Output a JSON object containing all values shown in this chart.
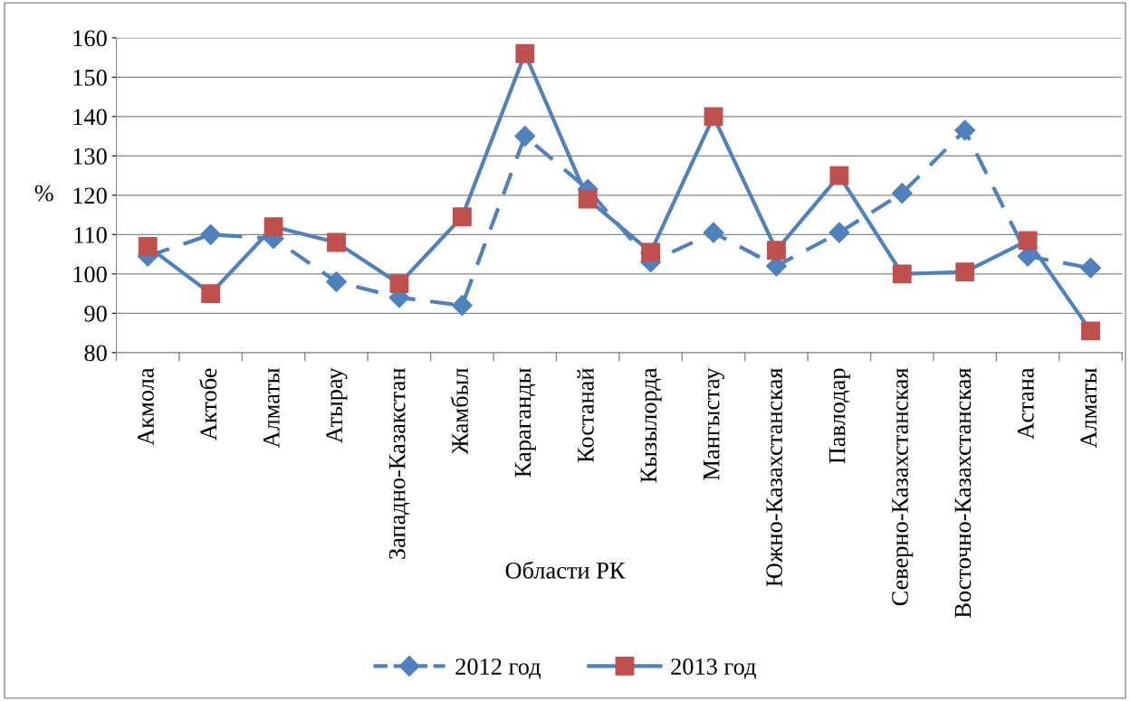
{
  "chart_data": {
    "type": "line",
    "categories": [
      "Акмола",
      "Актобе",
      "Алматы",
      "Атырау",
      "Западно-Казакстан",
      "Жамбыл",
      "Караганды",
      "Костанай",
      "Кызылорда",
      "Мангыстау",
      "Южно-Казахстанская",
      "Павлодар",
      "Северно-Казахстанская",
      "Восточно-Казахстанская",
      "Астана",
      "Алматы"
    ],
    "series": [
      {
        "name": "2012 год",
        "color": "#4f81bd",
        "marker": "diamond",
        "colors": [
          "#4f81bd",
          "#4f81bd",
          "#4f81bd",
          "#4f81bd",
          "#4f81bd",
          "#4f81bd",
          "#4f81bd",
          "#4f81bd",
          "#4f81bd",
          "#4f81bd",
          "#4f81bd",
          "#4f81bd",
          "#4f81bd",
          "#4f81bd",
          "#4f81bd",
          "#4f81bd"
        ],
        "line_style": "dashed",
        "values": [
          104.5,
          110,
          109,
          98,
          94,
          92,
          135,
          121.5,
          103,
          110.5,
          102,
          110.5,
          120.5,
          136.5,
          104.5,
          101.5
        ]
      },
      {
        "name": "2013 год",
        "color": "#4f81bd",
        "marker": "square",
        "colors": [
          "#c0504d",
          "#c0504d",
          "#c0504d",
          "#c0504d",
          "#c0504d",
          "#c0504d",
          "#c0504d",
          "#c0504d",
          "#c0504d",
          "#c0504d",
          "#c0504d",
          "#c0504d",
          "#c0504d",
          "#c0504d",
          "#c0504d",
          "#c0504d"
        ],
        "line_style": "solid",
        "values": [
          107,
          95,
          112,
          108,
          97.5,
          114.5,
          156,
          119,
          105.5,
          140,
          106,
          125,
          100,
          100.5,
          108.5,
          85.5
        ]
      }
    ],
    "xlabel": "Области РК",
    "ylabel": "%",
    "ylim": [
      80,
      160
    ],
    "yticks": [
      80,
      90,
      100,
      110,
      120,
      130,
      140,
      150,
      160
    ],
    "grid": "y",
    "legend": "bottom"
  }
}
